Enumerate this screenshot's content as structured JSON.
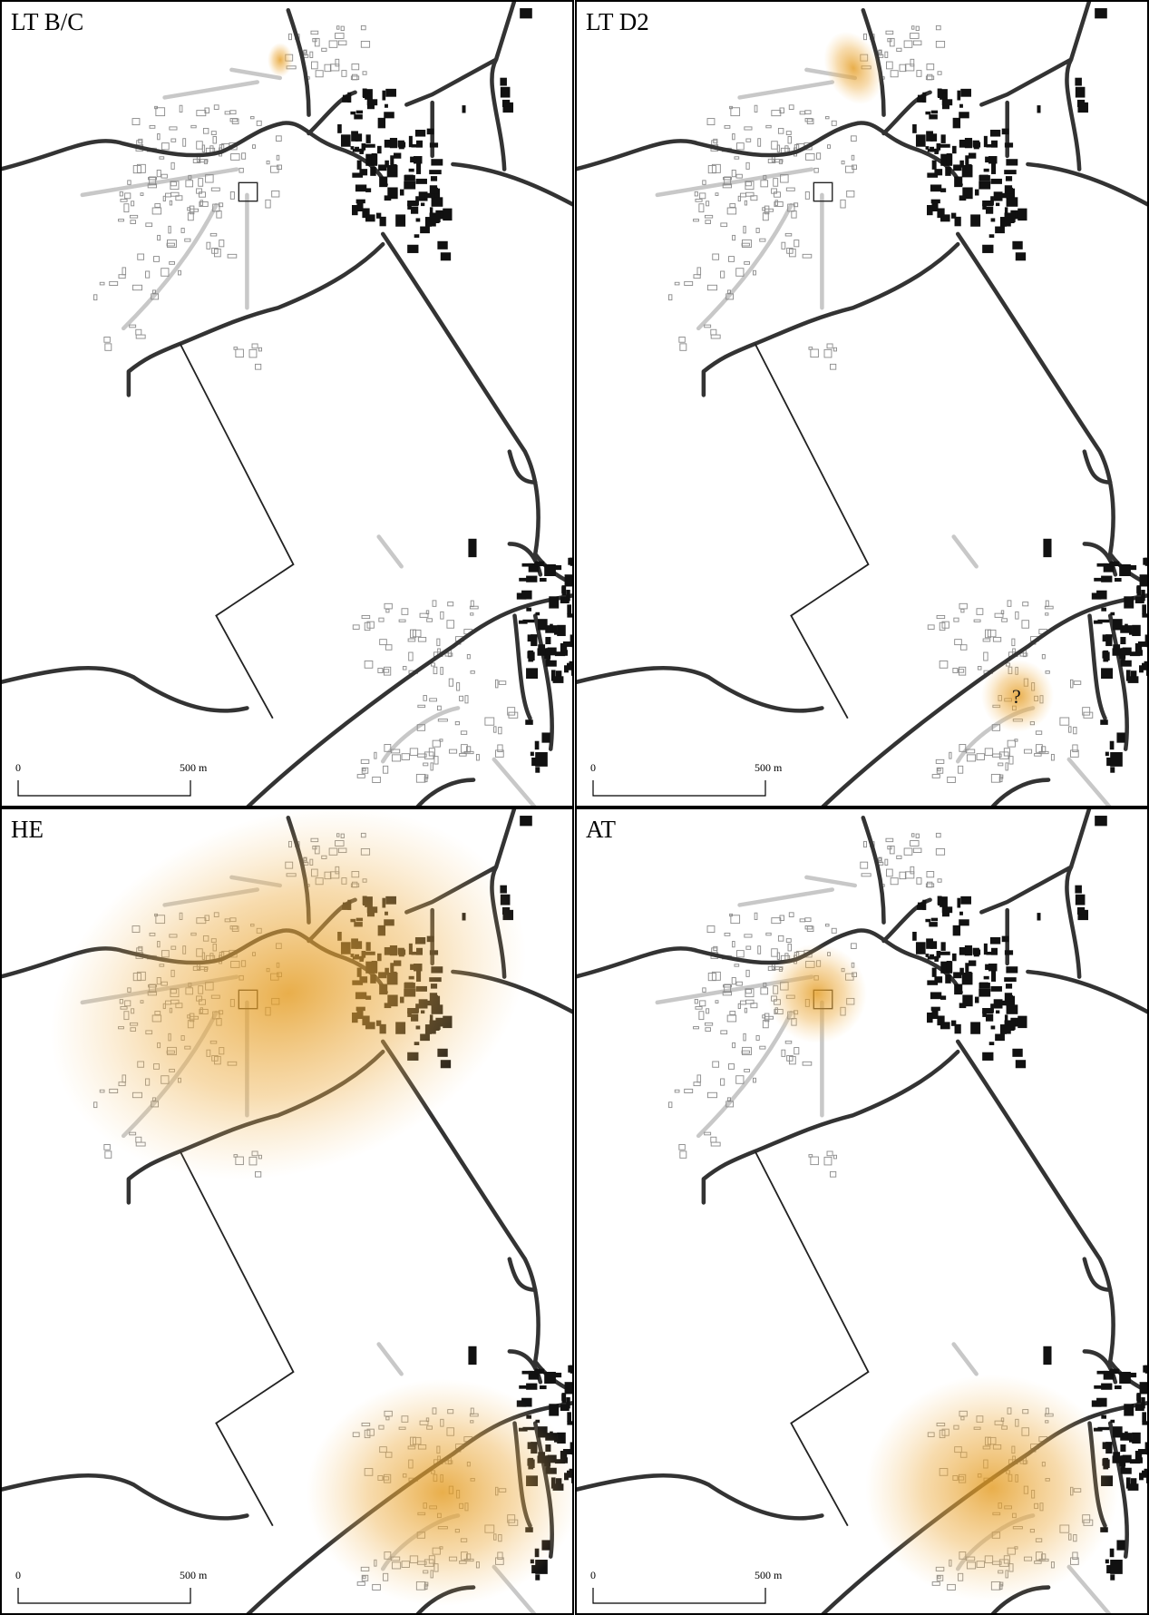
{
  "panels": [
    {
      "label": "LT B/C",
      "scale_bar": {
        "start": "0",
        "end": "500 m"
      }
    },
    {
      "label": "LT D2",
      "annotation": "?",
      "scale_bar": {
        "start": "0",
        "end": "500 m"
      }
    },
    {
      "label": "HE",
      "scale_bar": {
        "start": "0",
        "end": "500 m"
      }
    },
    {
      "label": "AT",
      "scale_bar": {
        "start": "0",
        "end": "500 m"
      }
    }
  ]
}
